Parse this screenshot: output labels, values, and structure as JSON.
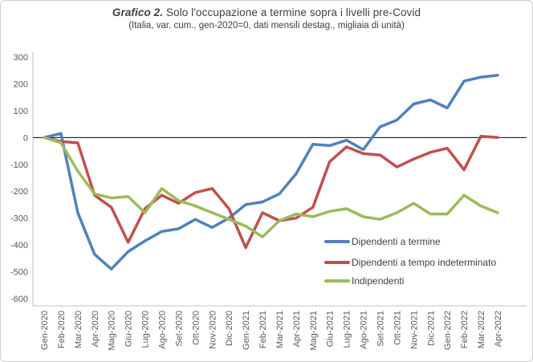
{
  "title": {
    "prefix": "Grafico 2.",
    "main": " Solo l'occupazione a termine sopra i livelli pre-Covid",
    "subtitle": "(Italia, var. cum., gen-2020=0, dati mensili destag., migliaia di unità)"
  },
  "chart_data": {
    "type": "line",
    "title": "Grafico 2. Solo l'occupazione a termine sopra i livelli pre-Covid",
    "subtitle": "(Italia, var. cum., gen-2020=0, dati mensili destag., migliaia di unità)",
    "xlabel": "",
    "ylabel": "",
    "ylim": [
      -600,
      300
    ],
    "yticks": [
      300,
      200,
      100,
      0,
      -100,
      -200,
      -300,
      -400,
      -500,
      -600
    ],
    "grid": false,
    "zero_line": true,
    "legend_position": "inside-bottom-right",
    "categories": [
      "Gen-2020",
      "Feb-2020",
      "Mar-2020",
      "Apr-2020",
      "Mag-2020",
      "Giu-2020",
      "Lug-2020",
      "Ago-2020",
      "Set-2020",
      "Ott-2020",
      "Nov-2020",
      "Dic-2020",
      "Gen-2021",
      "Feb-2021",
      "Mar-2021",
      "Apr-2021",
      "Mag-2021",
      "Giu-2021",
      "Lug-2021",
      "Ago-2021",
      "Set-2021",
      "Ott-2021",
      "Nov-2021",
      "Dic-2021",
      "Gen-2022",
      "Feb-2022",
      "Mar-2022",
      "Apr-2022"
    ],
    "series": [
      {
        "name": "Dipendenti a termine",
        "color": "#4F81BD",
        "values": [
          0,
          15,
          -280,
          -435,
          -490,
          -425,
          -385,
          -350,
          -340,
          -305,
          -335,
          -300,
          -250,
          -240,
          -210,
          -135,
          -25,
          -30,
          -10,
          -45,
          40,
          65,
          125,
          140,
          110,
          210,
          225,
          232
        ]
      },
      {
        "name": "Dipendenti a tempo indeterminato",
        "color": "#C0504D",
        "values": [
          0,
          -15,
          -20,
          -215,
          -260,
          -390,
          -265,
          -215,
          -245,
          -205,
          -190,
          -265,
          -410,
          -280,
          -310,
          -300,
          -260,
          -90,
          -35,
          -60,
          -65,
          -110,
          -80,
          -55,
          -40,
          -120,
          5,
          0
        ]
      },
      {
        "name": "Indipendenti",
        "color": "#9BBB59",
        "values": [
          0,
          -20,
          -125,
          -210,
          -225,
          -220,
          -280,
          -190,
          -235,
          -255,
          -280,
          -305,
          -330,
          -370,
          -310,
          -285,
          -295,
          -275,
          -265,
          -295,
          -305,
          -280,
          -245,
          -285,
          -285,
          -215,
          -255,
          -280
        ]
      }
    ]
  },
  "colors": {
    "axis_text": "#595959",
    "title_text": "#404040",
    "axis_line": "#bfbfbf",
    "zero_line": "#000000",
    "border": "#d0cece",
    "background": "#ffffff"
  }
}
